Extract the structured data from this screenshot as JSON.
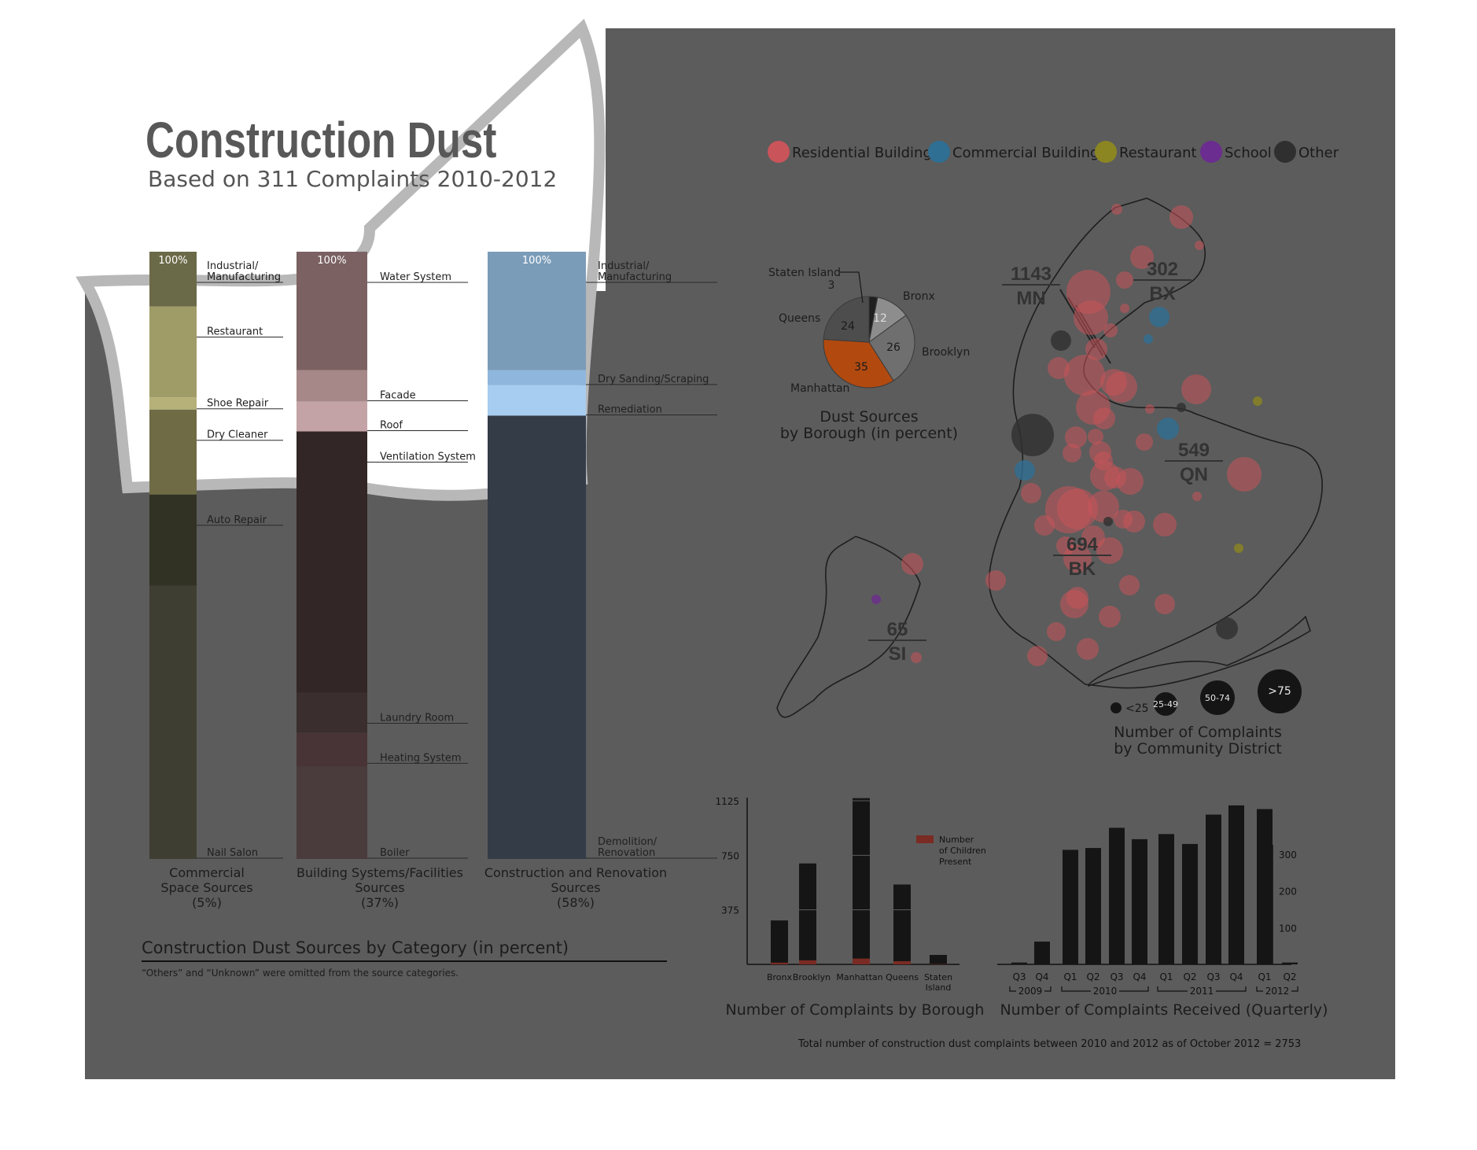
{
  "poster": {
    "title": "Construction Dust",
    "subtitle": "Based on 311 Complaints 2010-2012",
    "total_note": "Total number of construction dust complaints between 2010 and 2012 as of October 2012 = 2753",
    "colors": {
      "panel": "#5c5c5c",
      "dark_bar": "#151515",
      "children_bar": "#7a2b23",
      "residential": "#c9545a",
      "commercial": "#2f6f93",
      "restaurant": "#8b8621",
      "school": "#6b2d8f",
      "other": "#2f2f2f",
      "manhattan_slice": "#b24a10"
    }
  },
  "category_chart": {
    "heading": "Construction Dust Sources by Category (in percent)",
    "note": "“Others” and “Unknown” were omitted from the source categories.",
    "columns": [
      {
        "name": "Commercial Space Sources (5%)",
        "label_lines": [
          "Commercial",
          "Space Sources",
          "(5%)"
        ],
        "top_label": "100%",
        "segments": [
          {
            "label": "Industrial/ Manufacturing",
            "label_lines": [
              "Industrial/",
              "Manufacturing"
            ],
            "value": 9,
            "color": "#6b6a48"
          },
          {
            "label": "Restaurant",
            "label_lines": [
              "Restaurant"
            ],
            "value": 15,
            "color": "#a09c68"
          },
          {
            "label": "Shoe Repair",
            "label_lines": [
              "Shoe Repair"
            ],
            "value": 2,
            "color": "#b6b079"
          },
          {
            "label": "Dry Cleaner",
            "label_lines": [
              "Dry Cleaner"
            ],
            "value": 14,
            "color": "#6e6b45"
          },
          {
            "label": "Auto Repair",
            "label_lines": [
              "Auto Repair"
            ],
            "value": 15,
            "color": "#313224"
          },
          {
            "label": "Nail Salon",
            "label_lines": [
              "Nail Salon"
            ],
            "value": 45,
            "color": "#3f3e32"
          }
        ]
      },
      {
        "name": "Building Systems/Facilities Sources (37%)",
        "label_lines": [
          "Building Systems/Facilities",
          "Sources",
          "(37%)"
        ],
        "top_label": "100%",
        "segments": [
          {
            "label": "Water System",
            "label_lines": [
              "Water System"
            ],
            "value": 19.5,
            "color": "#7b6162"
          },
          {
            "label": "Facade",
            "label_lines": [
              "Facade"
            ],
            "value": 5.2,
            "color": "#a68888"
          },
          {
            "label": "Roof",
            "label_lines": [
              "Roof"
            ],
            "value": 4.9,
            "color": "#c4a3a7"
          },
          {
            "label": "Ventilation System",
            "label_lines": [
              "Ventilation System"
            ],
            "value": 43,
            "color": "#332627"
          },
          {
            "label": "Laundry Room",
            "label_lines": [
              "Laundry Room"
            ],
            "value": 6.6,
            "color": "#3a2e2f"
          },
          {
            "label": "Heating System",
            "label_lines": [
              "Heating System"
            ],
            "value": 5.6,
            "color": "#483436"
          },
          {
            "label": "Boiler",
            "label_lines": [
              "Boiler"
            ],
            "value": 15.2,
            "color": "#4a3b3d"
          }
        ]
      },
      {
        "name": "Construction and Renovation Sources (58%)",
        "label_lines": [
          "Construction and Renovation",
          "Sources",
          "(58%)"
        ],
        "top_label": "100%",
        "segments": [
          {
            "label": "Industrial/ Manufacturing",
            "label_lines": [
              "Industrial/",
              "Manufacturing"
            ],
            "value": 19.5,
            "color": "#7b9cb9"
          },
          {
            "label": "Dry Sanding/Scraping",
            "label_lines": [
              "Dry Sanding/Scraping"
            ],
            "value": 2.5,
            "color": "#8fb6dd"
          },
          {
            "label": "Remediation",
            "label_lines": [
              "Remediation"
            ],
            "value": 5.0,
            "color": "#a7cdf0"
          },
          {
            "label": "Demolition/ Renovation",
            "label_lines": [
              "Demolition/",
              "Renovation"
            ],
            "value": 73,
            "color": "#333c47"
          }
        ]
      }
    ]
  },
  "legend": {
    "items": [
      {
        "label": "Residential Building",
        "color": "#c9545a"
      },
      {
        "label": "Commercial Building",
        "color": "#2f6f93"
      },
      {
        "label": "Restaurant",
        "color": "#8b8621"
      },
      {
        "label": "School",
        "color": "#6b2d8f"
      },
      {
        "label": "Other",
        "color": "#2f2f2f"
      }
    ]
  },
  "pie": {
    "title_lines": [
      "Dust Sources",
      "by Borough (in percent)"
    ],
    "slices": [
      {
        "borough": "Staten Island",
        "value": 3,
        "color": "#1f1f1f"
      },
      {
        "borough": "Bronx",
        "value": 12,
        "color": "#8d8d8d"
      },
      {
        "borough": "Brooklyn",
        "value": 26,
        "color": "#6f6f6f"
      },
      {
        "borough": "Manhattan",
        "value": 35,
        "color": "#b24a10"
      },
      {
        "borough": "Queens",
        "value": 24,
        "color": "#4d4d4d"
      }
    ],
    "labels": {
      "staten_island_name": "Staten Island",
      "staten_island_value": "3",
      "bronx": "Bronx",
      "queens": "Queens",
      "brooklyn": "Brooklyn",
      "manhattan": "Manhattan",
      "bronx_value": "12",
      "brooklyn_value": "26",
      "manhattan_value": "35",
      "queens_value": "24"
    }
  },
  "map": {
    "boroughs": [
      {
        "number": "1143",
        "code": "MN"
      },
      {
        "number": "302",
        "code": "BX"
      },
      {
        "number": "549",
        "code": "QN"
      },
      {
        "number": "694",
        "code": "BK"
      },
      {
        "number": "65",
        "code": "SI"
      }
    ],
    "size_legend": {
      "title_lines": [
        "Number of Complaints",
        "by Community District"
      ],
      "bins": [
        "<25",
        "25-49",
        "50-74",
        ">75"
      ]
    }
  },
  "chart_data": [
    {
      "type": "bar",
      "title": "Number of Complaints by Borough",
      "categories": [
        "Bronx",
        "Brooklyn",
        "Manhattan",
        "Queens",
        "Staten Island"
      ],
      "series": [
        {
          "name": "Complaints",
          "values": [
            302,
            694,
            1143,
            549,
            65
          ]
        },
        {
          "name": "Number of Children Present",
          "values": [
            12,
            28,
            40,
            22,
            2
          ]
        }
      ],
      "y_ticks": [
        375,
        750,
        1125
      ],
      "ylim": [
        0,
        1200
      ],
      "legend_lines": [
        "Number",
        "of Children",
        "Present"
      ]
    },
    {
      "type": "bar",
      "title": "Number of Complaints Received (Quarterly)",
      "categories": [
        "Q3",
        "Q4",
        "Q1",
        "Q2",
        "Q3",
        "Q4",
        "Q1",
        "Q2",
        "Q3",
        "Q4",
        "Q1",
        "Q2"
      ],
      "years": [
        {
          "label": "2009",
          "from": 0,
          "to": 1
        },
        {
          "label": "2010",
          "from": 2,
          "to": 5
        },
        {
          "label": "2011",
          "from": 6,
          "to": 9
        },
        {
          "label": "2012",
          "from": 10,
          "to": 11
        }
      ],
      "series": [
        {
          "name": "Complaints",
          "values": [
            5,
            62,
            312,
            317,
            372,
            341,
            355,
            328,
            408,
            433,
            423,
            5
          ]
        }
      ],
      "y_ticks": [
        100,
        200,
        300
      ],
      "ylim": [
        0,
        440
      ]
    }
  ]
}
